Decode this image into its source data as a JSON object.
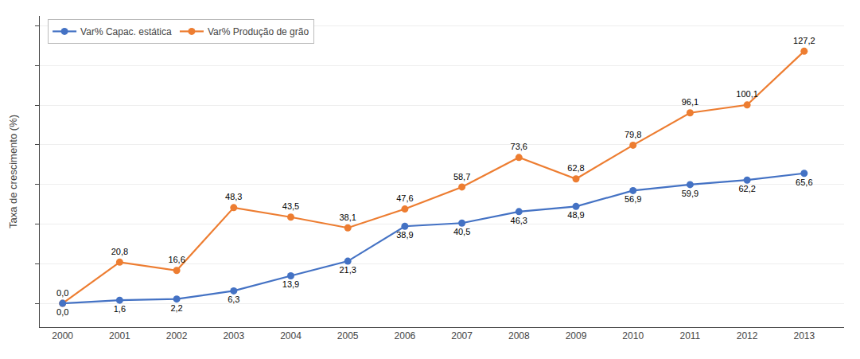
{
  "chart_data": {
    "type": "line",
    "x": [
      2000,
      2001,
      2002,
      2003,
      2004,
      2005,
      2006,
      2007,
      2008,
      2009,
      2010,
      2011,
      2012,
      2013
    ],
    "series": [
      {
        "name": "Var% Produção de grão",
        "color": "#ED7D31",
        "values": [
          0.0,
          20.8,
          16.6,
          48.3,
          43.5,
          38.1,
          47.6,
          58.7,
          73.6,
          62.8,
          79.8,
          96.1,
          100.1,
          127.2
        ],
        "value_labels": [
          "0,0",
          "20,8",
          "16,6",
          "48,3",
          "43,5",
          "38,1",
          "47,6",
          "58,7",
          "73,6",
          "62,8",
          "79,8",
          "96,1",
          "100,1",
          "127,2"
        ]
      },
      {
        "name": "Var% Capac. estática",
        "color": "#4472C4",
        "values": [
          0.0,
          1.6,
          2.2,
          6.3,
          13.9,
          21.3,
          38.9,
          40.5,
          46.3,
          48.9,
          56.9,
          59.9,
          62.2,
          65.6
        ],
        "value_labels": [
          "0,0",
          "1,6",
          "2,2",
          "6,3",
          "13,9",
          "21,3",
          "38,9",
          "40,5",
          "46,3",
          "48,9",
          "56,9",
          "59,9",
          "62,2",
          "65,6"
        ]
      }
    ],
    "ylabel": "Taxa de crescimento (%)",
    "xlim": [
      1999.6,
      2013.7
    ],
    "xticks": [
      2000,
      2001,
      2002,
      2003,
      2004,
      2005,
      2006,
      2007,
      2008,
      2009,
      2010,
      2011,
      2012,
      2013
    ],
    "ylim": [
      -12,
      145
    ],
    "yticks": [
      0,
      20,
      40,
      60,
      80,
      100,
      120,
      140
    ],
    "grid": true,
    "legend": "upper left",
    "data_labels": true,
    "tick_labels": "x",
    "marker": "circle"
  }
}
